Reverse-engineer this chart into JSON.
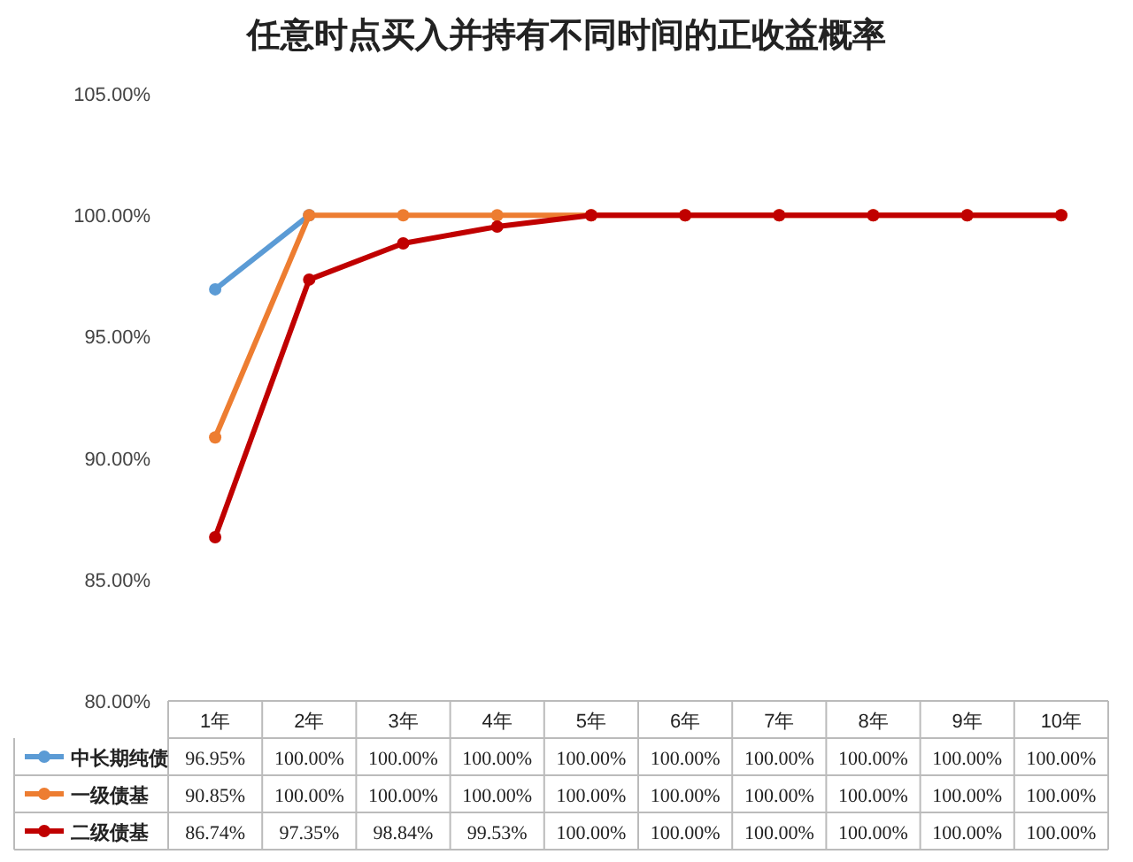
{
  "chart_data": {
    "type": "line",
    "title": "任意时点买入并持有不同时间的正收益概率",
    "categories": [
      "1年",
      "2年",
      "3年",
      "4年",
      "5年",
      "6年",
      "7年",
      "8年",
      "9年",
      "10年"
    ],
    "series": [
      {
        "name": "中长期纯债",
        "color": "#5b9bd5",
        "values": [
          96.95,
          100,
          null,
          null,
          null,
          null,
          null,
          null,
          null,
          null
        ],
        "value_labels": [
          "96.95%",
          "100.00%",
          "100.00%",
          "100.00%",
          "100.00%",
          "100.00%",
          "100.00%",
          "100.00%",
          "100.00%",
          "100.00%"
        ]
      },
      {
        "name": "一级债基",
        "color": "#ed7d31",
        "values": [
          90.85,
          100,
          100,
          100,
          100,
          100,
          100,
          100,
          100,
          100
        ],
        "value_labels": [
          "90.85%",
          "100.00%",
          "100.00%",
          "100.00%",
          "100.00%",
          "100.00%",
          "100.00%",
          "100.00%",
          "100.00%",
          "100.00%"
        ]
      },
      {
        "name": "二级债基",
        "color": "#c00000",
        "values": [
          86.74,
          97.35,
          98.84,
          99.53,
          100,
          100,
          100,
          100,
          100,
          100
        ],
        "value_labels": [
          "86.74%",
          "97.35%",
          "98.84%",
          "99.53%",
          "100.00%",
          "100.00%",
          "100.00%",
          "100.00%",
          "100.00%",
          "100.00%"
        ]
      }
    ],
    "ylim": [
      80,
      105
    ],
    "yticks": [
      {
        "value": 80,
        "label": "80.00%"
      },
      {
        "value": 85,
        "label": "85.00%"
      },
      {
        "value": 90,
        "label": "90.00%"
      },
      {
        "value": 95,
        "label": "95.00%"
      },
      {
        "value": 100,
        "label": "100.00%"
      },
      {
        "value": 105,
        "label": "105.00%"
      }
    ],
    "marker": "circle",
    "line_style": "solid",
    "legend": "bottom"
  }
}
